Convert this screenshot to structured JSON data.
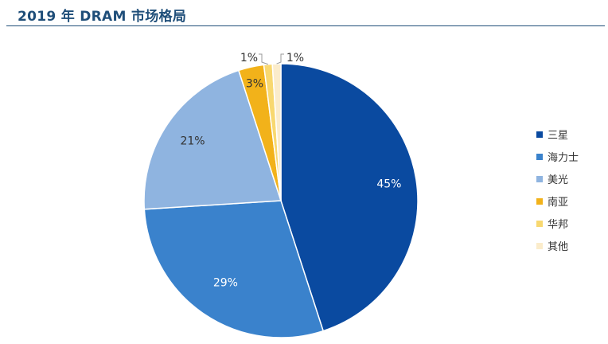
{
  "header": {
    "title": "2019 年 DRAM 市场格局"
  },
  "chart_data": {
    "type": "pie",
    "title": "2019 年 DRAM 市场格局",
    "categories": [
      "三星",
      "海力士",
      "美光",
      "南亚",
      "华邦",
      "其他"
    ],
    "values": [
      45,
      29,
      21,
      3,
      1,
      1
    ],
    "labels": [
      "45%",
      "29%",
      "21%",
      "3%",
      "1%",
      "1%"
    ],
    "colors": [
      "#0a4aa0",
      "#3a82cc",
      "#8fb4e0",
      "#f2b21a",
      "#f8d870",
      "#fbeccb"
    ],
    "label_colors": [
      "#ffffff",
      "#ffffff",
      "#333333",
      "#333333",
      "#333333",
      "#333333"
    ],
    "start": "12 o'clock",
    "direction": "clockwise",
    "legend_position": "right"
  }
}
